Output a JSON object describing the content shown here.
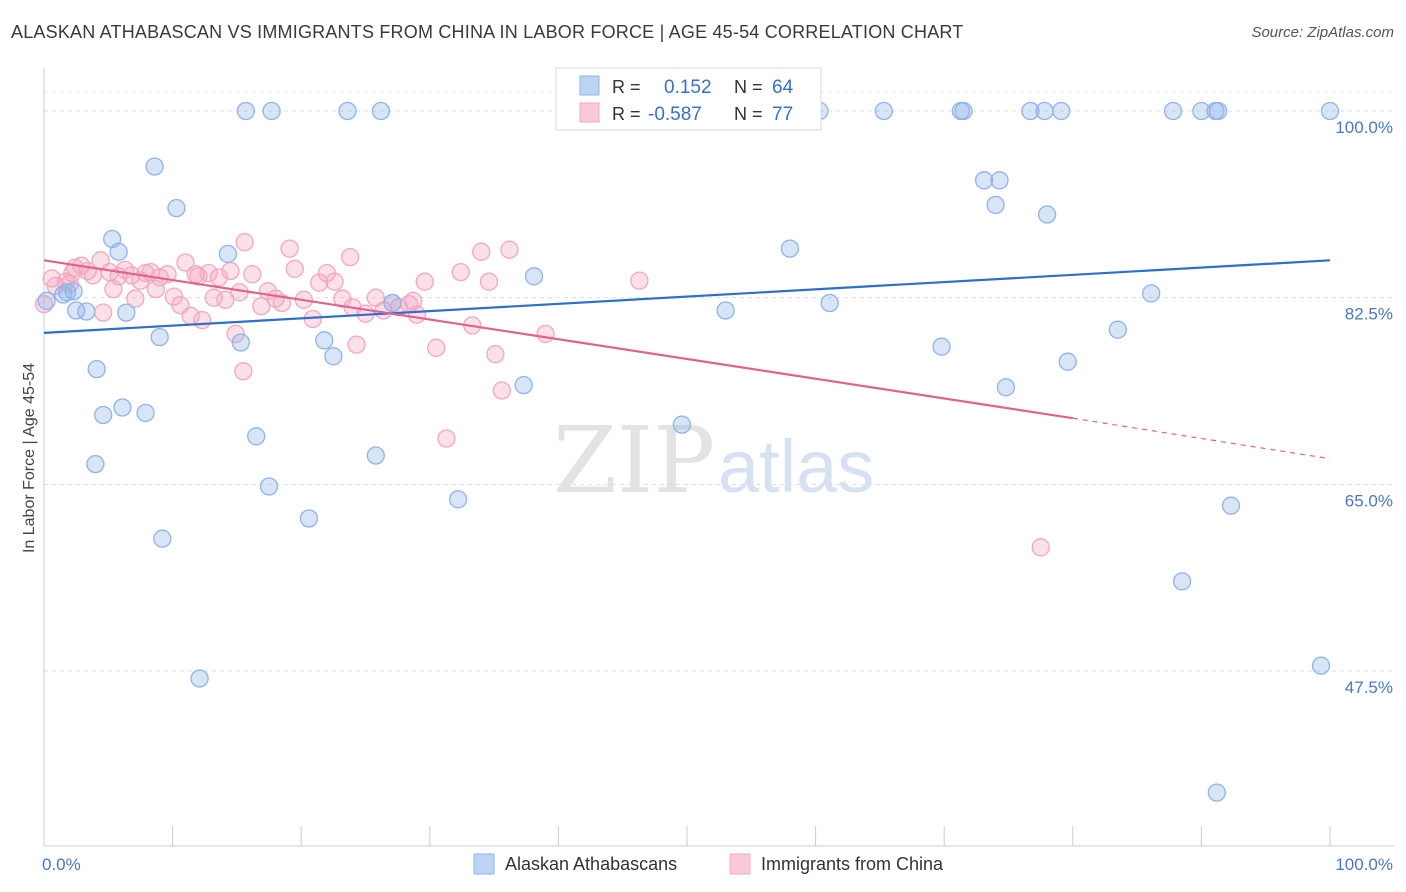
{
  "header": {
    "title": "ALASKAN ATHABASCAN VS IMMIGRANTS FROM CHINA IN LABOR FORCE | AGE 45-54 CORRELATION CHART",
    "source": "Source: ZipAtlas.com"
  },
  "watermark": {
    "zip": "ZIP",
    "atlas": "atlas"
  },
  "chart_data": {
    "type": "scatter",
    "title": "ALASKAN ATHABASCAN VS IMMIGRANTS FROM CHINA IN LABOR FORCE | AGE 45-54 CORRELATION CHART",
    "xlabel": "",
    "ylabel": "In Labor Force | Age 45-54",
    "xlim": [
      0,
      100
    ],
    "ylim": [
      31,
      103
    ],
    "x_tick_labels": [
      "0.0%",
      "100.0%"
    ],
    "y_ticks": [
      47.5,
      65.0,
      82.5,
      100.0
    ],
    "y_tick_labels": [
      "47.5%",
      "65.0%",
      "82.5%",
      "100.0%"
    ],
    "grid": true,
    "legend_position": "top-center",
    "series": [
      {
        "name": "Alaskan Athabascans",
        "color": "#8fb4e8",
        "line_color": "#2e6fcc",
        "R": "0.152",
        "N": "64",
        "trend": {
          "x": [
            0,
            100
          ],
          "y": [
            79.2,
            86.0
          ]
        },
        "points": [
          [
            0.2,
            82.2
          ],
          [
            1.5,
            82.8
          ],
          [
            2.3,
            83.1
          ],
          [
            2.5,
            81.3
          ],
          [
            3.3,
            81.2
          ],
          [
            4.1,
            75.8
          ],
          [
            4.6,
            71.5
          ],
          [
            4.0,
            66.9
          ],
          [
            5.3,
            88.0
          ],
          [
            5.8,
            86.8
          ],
          [
            6.1,
            72.2
          ],
          [
            6.4,
            81.1
          ],
          [
            7.9,
            71.7
          ],
          [
            8.6,
            94.8
          ],
          [
            9.0,
            78.8
          ],
          [
            9.2,
            59.9
          ],
          [
            10.3,
            90.9
          ],
          [
            12.1,
            46.8
          ],
          [
            14.3,
            86.6
          ],
          [
            15.3,
            78.3
          ],
          [
            16.5,
            69.5
          ],
          [
            17.5,
            64.8
          ],
          [
            15.7,
            100.0
          ],
          [
            17.7,
            100.0
          ],
          [
            20.6,
            61.8
          ],
          [
            21.8,
            78.5
          ],
          [
            22.5,
            77.0
          ],
          [
            23.6,
            100.0
          ],
          [
            25.8,
            67.7
          ],
          [
            26.2,
            100.0
          ],
          [
            27.1,
            82.0
          ],
          [
            32.2,
            63.6
          ],
          [
            37.3,
            74.3
          ],
          [
            38.1,
            84.5
          ],
          [
            49.6,
            70.6
          ],
          [
            53.0,
            81.3
          ],
          [
            58.0,
            87.1
          ],
          [
            60.3,
            100.0
          ],
          [
            61.1,
            82.0
          ],
          [
            65.3,
            100.0
          ],
          [
            69.8,
            77.9
          ],
          [
            71.3,
            100.0
          ],
          [
            71.5,
            100.0
          ],
          [
            73.1,
            93.5
          ],
          [
            74.3,
            93.5
          ],
          [
            74.0,
            91.2
          ],
          [
            74.8,
            74.1
          ],
          [
            76.7,
            100.0
          ],
          [
            77.8,
            100.0
          ],
          [
            78.0,
            90.3
          ],
          [
            79.1,
            100.0
          ],
          [
            79.6,
            76.5
          ],
          [
            83.5,
            79.5
          ],
          [
            86.1,
            82.9
          ],
          [
            87.8,
            100.0
          ],
          [
            88.5,
            55.9
          ],
          [
            90.0,
            100.0
          ],
          [
            91.1,
            100.0
          ],
          [
            91.3,
            100.0
          ],
          [
            92.3,
            63.0
          ],
          [
            99.3,
            48.0
          ],
          [
            100.0,
            100.0
          ],
          [
            91.2,
            36.1
          ],
          [
            1.8,
            83.0
          ]
        ]
      },
      {
        "name": "Immigrants from China",
        "color": "#f4a7c0",
        "line_color": "#e0628f",
        "R": "-0.587",
        "N": "77",
        "trend": {
          "x": [
            0,
            80
          ],
          "y": [
            86.0,
            71.2
          ]
        },
        "trend_dashed": {
          "x": [
            80,
            100
          ],
          "y": [
            71.2,
            67.4
          ]
        },
        "points": [
          [
            0.0,
            81.9
          ],
          [
            0.6,
            84.3
          ],
          [
            0.9,
            83.6
          ],
          [
            1.7,
            84.0
          ],
          [
            2.0,
            83.8
          ],
          [
            2.4,
            85.3
          ],
          [
            2.9,
            85.5
          ],
          [
            3.4,
            85.0
          ],
          [
            3.8,
            84.6
          ],
          [
            4.4,
            86.0
          ],
          [
            4.6,
            81.1
          ],
          [
            5.1,
            84.9
          ],
          [
            5.4,
            83.3
          ],
          [
            5.8,
            84.5
          ],
          [
            6.3,
            85.1
          ],
          [
            6.8,
            84.6
          ],
          [
            7.1,
            82.4
          ],
          [
            7.5,
            84.1
          ],
          [
            7.9,
            84.8
          ],
          [
            8.3,
            84.9
          ],
          [
            8.7,
            83.3
          ],
          [
            9.0,
            84.4
          ],
          [
            9.6,
            84.7
          ],
          [
            10.1,
            82.6
          ],
          [
            10.6,
            81.8
          ],
          [
            11.0,
            85.8
          ],
          [
            11.4,
            80.8
          ],
          [
            11.8,
            84.7
          ],
          [
            12.3,
            80.4
          ],
          [
            12.8,
            84.8
          ],
          [
            13.2,
            82.5
          ],
          [
            13.6,
            84.4
          ],
          [
            14.1,
            82.3
          ],
          [
            14.5,
            85.0
          ],
          [
            14.9,
            79.1
          ],
          [
            15.2,
            83.0
          ],
          [
            15.6,
            87.7
          ],
          [
            15.5,
            75.6
          ],
          [
            16.2,
            84.7
          ],
          [
            16.9,
            81.7
          ],
          [
            17.4,
            83.1
          ],
          [
            18.0,
            82.4
          ],
          [
            18.5,
            82.0
          ],
          [
            19.1,
            87.1
          ],
          [
            19.5,
            85.2
          ],
          [
            20.2,
            82.3
          ],
          [
            20.9,
            80.5
          ],
          [
            21.4,
            83.9
          ],
          [
            22.0,
            84.8
          ],
          [
            22.6,
            84.0
          ],
          [
            23.2,
            82.4
          ],
          [
            23.8,
            86.3
          ],
          [
            24.3,
            78.1
          ],
          [
            25.0,
            81.0
          ],
          [
            25.8,
            82.5
          ],
          [
            26.4,
            81.3
          ],
          [
            27.1,
            82.0
          ],
          [
            27.6,
            81.6
          ],
          [
            28.4,
            81.9
          ],
          [
            29.0,
            80.9
          ],
          [
            29.6,
            84.0
          ],
          [
            30.5,
            77.8
          ],
          [
            31.3,
            69.3
          ],
          [
            32.4,
            84.9
          ],
          [
            34.0,
            86.8
          ],
          [
            35.1,
            77.2
          ],
          [
            35.6,
            73.8
          ],
          [
            36.2,
            87.0
          ],
          [
            39.0,
            79.1
          ],
          [
            46.3,
            84.1
          ],
          [
            77.5,
            59.1
          ],
          [
            2.2,
            84.8
          ],
          [
            12.0,
            84.5
          ],
          [
            24.0,
            81.6
          ],
          [
            28.7,
            82.2
          ],
          [
            33.3,
            79.9
          ],
          [
            34.6,
            84.0
          ]
        ]
      }
    ]
  }
}
